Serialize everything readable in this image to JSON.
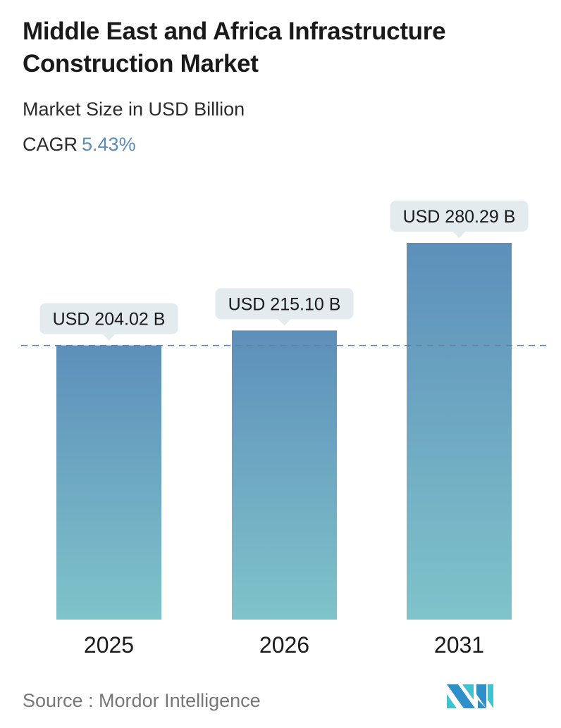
{
  "title": "Middle East and Africa Infrastructure Construction Market",
  "subtitle": "Market Size in USD Billion",
  "cagr_label": "CAGR",
  "cagr_value": "5.43%",
  "source": "Source :  Mordor Intelligence",
  "colors": {
    "bar_top": "#5d8fba",
    "bar_bottom": "#7fc3ca",
    "accent": "#5b8db8",
    "label_bg": "#e3ebef"
  },
  "chart_data": {
    "type": "bar",
    "categories": [
      "2025",
      "2026",
      "2031"
    ],
    "values": [
      204.02,
      215.1,
      280.29
    ],
    "data_labels": [
      "USD 204.02 B",
      "USD 215.10 B",
      "USD 280.29 B"
    ],
    "reference_line": 204.02,
    "ylim": [
      0,
      280.29
    ],
    "grid": false
  }
}
